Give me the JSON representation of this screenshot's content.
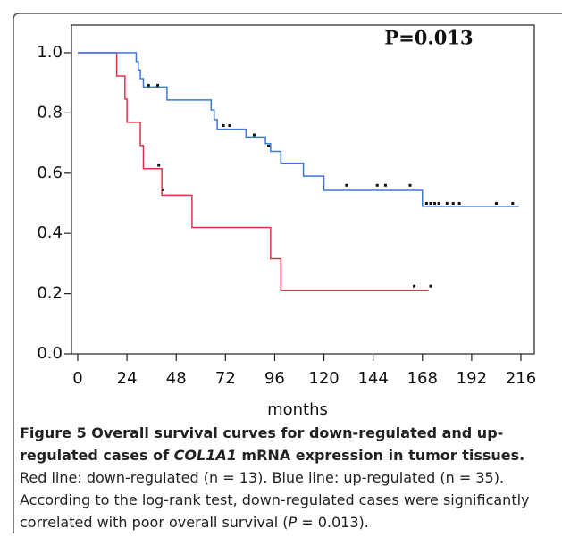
{
  "chart_data": {
    "type": "step",
    "annotation": "P=0.013",
    "x_label": "months",
    "xlim": [
      0,
      216
    ],
    "xticks": [
      0,
      24,
      48,
      72,
      96,
      120,
      144,
      168,
      192,
      216
    ],
    "ylim": [
      0,
      1
    ],
    "yticks": [
      {
        "value": 0,
        "label": "0.0"
      },
      0.2,
      0.4,
      0.6,
      0.8,
      {
        "value": 1,
        "label": "1.0"
      }
    ],
    "series": [
      {
        "color": "#d9334a",
        "x": [
          0,
          19,
          23,
          24,
          30.5,
          32,
          41,
          55.7,
          94,
          99,
          171
        ],
        "values": [
          1,
          0.923,
          0.846,
          0.769,
          0.692,
          0.615,
          0.527,
          0.42,
          0.316,
          0.21,
          0.21
        ],
        "censored_x": [
          39.5,
          41.5,
          164,
          172
        ],
        "censored_values": [
          0.626,
          0.545,
          0.225,
          0.225
        ]
      },
      {
        "color": "#3b78d8",
        "x": [
          0,
          28.5,
          29.5,
          30.5,
          32,
          43.5,
          65,
          66.5,
          68,
          82,
          91.5,
          94,
          99,
          110,
          120,
          168,
          215
        ],
        "values": [
          1,
          0.971,
          0.943,
          0.914,
          0.886,
          0.843,
          0.81,
          0.778,
          0.746,
          0.72,
          0.698,
          0.672,
          0.633,
          0.59,
          0.543,
          0.49,
          0.49
        ],
        "censored_x": [
          34.5,
          39,
          71,
          74,
          86,
          93,
          131,
          146,
          150,
          162,
          170,
          172,
          174,
          176,
          180,
          183,
          186,
          204,
          212
        ],
        "censored_values": [
          0.892,
          0.892,
          0.758,
          0.758,
          0.727,
          0.69,
          0.56,
          0.56,
          0.56,
          0.56,
          0.5,
          0.5,
          0.5,
          0.5,
          0.5,
          0.5,
          0.5,
          0.5,
          0.5
        ]
      }
    ]
  },
  "caption": {
    "bold_1": "Figure 5 Overall survival curves for down-regulated and up-regulated cases of ",
    "gene": "COL1A1",
    "bold_2": " mRNA expression in tumor tissues.",
    "text_1": " Red line: down-regulated (n = 13). Blue line: up-regulated (n = 35). According to the log-rank test, down-regulated cases were significantly correlated with poor overall survival (",
    "p_symbol": "P",
    "text_2": " = 0.013)."
  }
}
